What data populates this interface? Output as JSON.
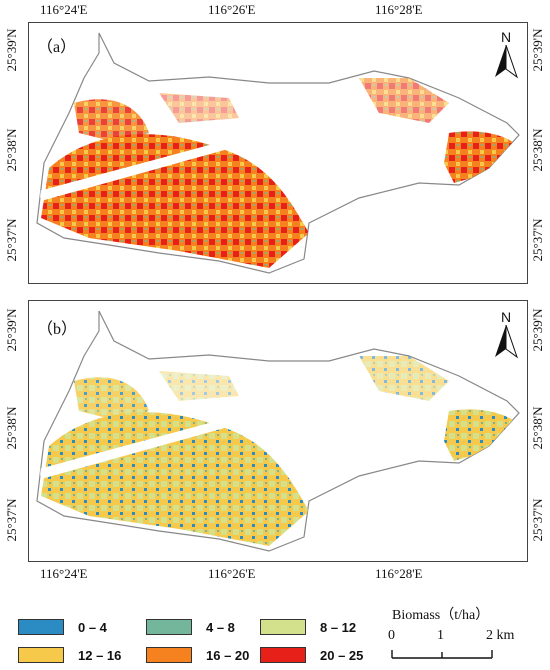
{
  "top_lon_labels": [
    "116°24'E",
    "116°26'E",
    "116°28'E"
  ],
  "bottom_lon_labels": [
    "116°24'E",
    "116°26'E",
    "116°28'E"
  ],
  "lat_labels": [
    "25°39'N",
    "25°38'N",
    "25°37'N"
  ],
  "panel_a": {
    "label": "（a）",
    "north": "N"
  },
  "panel_b": {
    "label": "（b）",
    "north": "N"
  },
  "legend": {
    "items": [
      {
        "label": "0 – 4",
        "color": "#2b8cc4"
      },
      {
        "label": "4 – 8",
        "color": "#74b69b"
      },
      {
        "label": "8 – 12",
        "color": "#d3e08c"
      },
      {
        "label": "12 – 16",
        "color": "#f7c94a"
      },
      {
        "label": "16 – 20",
        "color": "#f6821f"
      },
      {
        "label": "20 – 25",
        "color": "#e8201a"
      }
    ]
  },
  "scale_bar": {
    "title": "Biomass（t/ha）",
    "ticks": [
      "0",
      "1",
      "2 km"
    ]
  }
}
